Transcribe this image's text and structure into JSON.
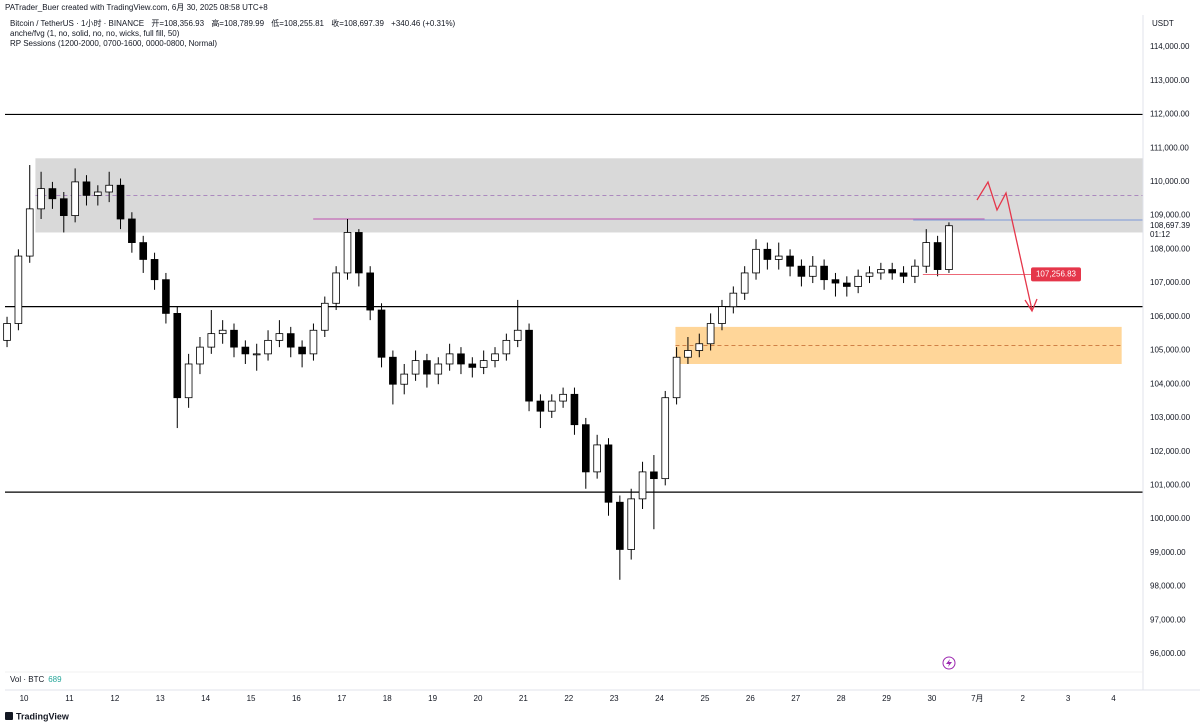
{
  "header": "PATrader_Buer created with TradingView.com, 6月 30, 2025 08:58 UTC+8",
  "legend": {
    "symbol": "Bitcoin / TetherUS · 1小时 · BINANCE",
    "open": "开=108,356.93",
    "high": "高=108,789.99",
    "low": "低=108,255.81",
    "close": "收=108,697.39",
    "change": "+340.46 (+0.31%)",
    "indicators": [
      "anche/fvg (1, no, solid, no, no, wicks, full fill, 50)",
      "RP Sessions (1200-2000, 0700-1600, 0000-0800, Normal)"
    ]
  },
  "currency": "USDT",
  "volume": {
    "label": "Vol · BTC",
    "value": "689"
  },
  "brand": "TradingView",
  "chart_data": {
    "type": "candlestick",
    "up_color": "#ffffff",
    "down_color": "#000000",
    "outline_color": "#000000",
    "xlim": [
      9.58,
      34.65
    ],
    "xticks": [
      10,
      11,
      12,
      13,
      14,
      15,
      16,
      17,
      18,
      19,
      20,
      21,
      22,
      23,
      24,
      25,
      26,
      27,
      28,
      29,
      30,
      {
        "value": 31,
        "label": "7月"
      },
      {
        "value": 32,
        "label": "2"
      },
      {
        "value": 33,
        "label": "3"
      },
      {
        "value": 34,
        "label": "4"
      }
    ],
    "ylim": [
      94932,
      114949
    ],
    "yticks": [
      {
        "value": 96000,
        "label": "96,000.00"
      },
      {
        "value": 97000,
        "label": "97,000.00"
      },
      {
        "value": 98000,
        "label": "98,000.00"
      },
      {
        "value": 99000,
        "label": "99,000.00"
      },
      {
        "value": 100000,
        "label": "100,000.00"
      },
      {
        "value": 101000,
        "label": "101,000.00"
      },
      {
        "value": 102000,
        "label": "102,000.00"
      },
      {
        "value": 103000,
        "label": "103,000.00"
      },
      {
        "value": 104000,
        "label": "104,000.00"
      },
      {
        "value": 105000,
        "label": "105,000.00"
      },
      {
        "value": 106000,
        "label": "106,000.00"
      },
      {
        "value": 107000,
        "label": "107,000.00"
      },
      {
        "value": 108000,
        "label": "108,000.00"
      },
      {
        "value": 109000,
        "label": "109,000.00"
      },
      {
        "value": 110000,
        "label": "110,000.00"
      },
      {
        "value": 111000,
        "label": "111,000.00"
      },
      {
        "value": 112000,
        "label": "112,000.00"
      },
      {
        "value": 113000,
        "label": "113,000.00"
      },
      {
        "value": 114000,
        "label": "114,000.00"
      }
    ],
    "x": [
      9.625,
      9.875,
      10.125,
      10.375,
      10.625,
      10.875,
      11.125,
      11.375,
      11.625,
      11.875,
      12.125,
      12.375,
      12.625,
      12.875,
      13.125,
      13.375,
      13.625,
      13.875,
      14.125,
      14.375,
      14.625,
      14.875,
      15.125,
      15.375,
      15.625,
      15.875,
      16.125,
      16.375,
      16.625,
      16.875,
      17.125,
      17.375,
      17.625,
      17.875,
      18.125,
      18.375,
      18.625,
      18.875,
      19.125,
      19.375,
      19.625,
      19.875,
      20.125,
      20.375,
      20.625,
      20.875,
      21.125,
      21.375,
      21.625,
      21.875,
      22.125,
      22.375,
      22.625,
      22.875,
      23.125,
      23.375,
      23.625,
      23.875,
      24.125,
      24.375,
      24.625,
      24.875,
      25.125,
      25.375,
      25.625,
      25.875,
      26.125,
      26.375,
      26.625,
      26.875,
      27.125,
      27.375,
      27.625,
      27.875,
      28.125,
      28.375,
      28.625,
      28.875,
      29.125,
      29.375,
      29.625,
      29.875,
      30.125,
      30.375
    ],
    "candles": [
      [
        105300,
        106000,
        105100,
        105800
      ],
      [
        105800,
        108000,
        105600,
        107800
      ],
      [
        107800,
        110500,
        107600,
        109200
      ],
      [
        109200,
        110300,
        108900,
        109800
      ],
      [
        109800,
        110000,
        109200,
        109500
      ],
      [
        109500,
        109700,
        108500,
        109000
      ],
      [
        109000,
        110400,
        108800,
        110000
      ],
      [
        110000,
        110200,
        109300,
        109600
      ],
      [
        109600,
        109900,
        109300,
        109700
      ],
      [
        109700,
        110300,
        109400,
        109900
      ],
      [
        109900,
        110100,
        108600,
        108900
      ],
      [
        108900,
        109100,
        107900,
        108200
      ],
      [
        108200,
        108400,
        107300,
        107700
      ],
      [
        107700,
        107900,
        106800,
        107100
      ],
      [
        107100,
        107300,
        105800,
        106100
      ],
      [
        106100,
        106300,
        102700,
        103600
      ],
      [
        103600,
        104900,
        103300,
        104600
      ],
      [
        104600,
        105400,
        104300,
        105100
      ],
      [
        105100,
        106200,
        104900,
        105500
      ],
      [
        105500,
        105900,
        105200,
        105600
      ],
      [
        105600,
        105800,
        104800,
        105100
      ],
      [
        105100,
        105300,
        104600,
        104900
      ],
      [
        104900,
        105200,
        104400,
        104900
      ],
      [
        104900,
        105600,
        104700,
        105300
      ],
      [
        105300,
        105900,
        105100,
        105500
      ],
      [
        105500,
        105700,
        104800,
        105100
      ],
      [
        105100,
        105300,
        104500,
        104900
      ],
      [
        104900,
        105800,
        104700,
        105600
      ],
      [
        105600,
        106600,
        105400,
        106400
      ],
      [
        106400,
        107500,
        106200,
        107300
      ],
      [
        107300,
        108900,
        107100,
        108500
      ],
      [
        108500,
        108600,
        106900,
        107300
      ],
      [
        107300,
        107500,
        105900,
        106200
      ],
      [
        106200,
        106400,
        104500,
        104800
      ],
      [
        104800,
        105000,
        103400,
        104000
      ],
      [
        104000,
        104600,
        103700,
        104300
      ],
      [
        104300,
        105000,
        104100,
        104700
      ],
      [
        104700,
        104900,
        103900,
        104300
      ],
      [
        104300,
        104800,
        104000,
        104600
      ],
      [
        104600,
        105200,
        104400,
        104900
      ],
      [
        104900,
        105100,
        104300,
        104600
      ],
      [
        104600,
        104800,
        104200,
        104500
      ],
      [
        104500,
        105000,
        104300,
        104700
      ],
      [
        104700,
        105100,
        104500,
        104900
      ],
      [
        104900,
        105500,
        104700,
        105300
      ],
      [
        105300,
        106500,
        105100,
        105600
      ],
      [
        105600,
        105800,
        103200,
        103500
      ],
      [
        103500,
        103700,
        102700,
        103200
      ],
      [
        103200,
        103700,
        103000,
        103500
      ],
      [
        103500,
        103900,
        103300,
        103700
      ],
      [
        103700,
        103900,
        102500,
        102800
      ],
      [
        102800,
        103000,
        100900,
        101400
      ],
      [
        101400,
        102500,
        101200,
        102200
      ],
      [
        102200,
        102400,
        100100,
        100500
      ],
      [
        100500,
        100700,
        98200,
        99100
      ],
      [
        99100,
        100900,
        98800,
        100600
      ],
      [
        100600,
        101700,
        100300,
        101400
      ],
      [
        101400,
        101900,
        99700,
        101200
      ],
      [
        101200,
        103800,
        101000,
        103600
      ],
      [
        103600,
        105100,
        103400,
        104800
      ],
      [
        104800,
        105400,
        104600,
        105000
      ],
      [
        105000,
        105500,
        104800,
        105200
      ],
      [
        105200,
        106100,
        105000,
        105800
      ],
      [
        105800,
        106500,
        105600,
        106300
      ],
      [
        106300,
        106900,
        106100,
        106700
      ],
      [
        106700,
        107500,
        106500,
        107300
      ],
      [
        107300,
        108300,
        107100,
        108000
      ],
      [
        108000,
        108200,
        107400,
        107700
      ],
      [
        107700,
        108200,
        107400,
        107800
      ],
      [
        107800,
        108000,
        107200,
        107500
      ],
      [
        107500,
        107700,
        106900,
        107200
      ],
      [
        107200,
        107800,
        107000,
        107500
      ],
      [
        107500,
        107700,
        106800,
        107100
      ],
      [
        107100,
        107300,
        106600,
        107000
      ],
      [
        107000,
        107200,
        106600,
        106900
      ],
      [
        106900,
        107400,
        106700,
        107200
      ],
      [
        107200,
        107500,
        107000,
        107300
      ],
      [
        107300,
        107600,
        107100,
        107400
      ],
      [
        107400,
        107600,
        107100,
        107300
      ],
      [
        107300,
        107500,
        107000,
        107200
      ],
      [
        107200,
        107700,
        107000,
        107500
      ],
      [
        107500,
        108600,
        107300,
        108200
      ],
      [
        108200,
        108400,
        107200,
        107400
      ],
      [
        107400,
        108800,
        107300,
        108700
      ]
    ],
    "zones": [
      {
        "from": 10.25,
        "to": 34.65,
        "low": 108500,
        "high": 110700,
        "mid": 109600,
        "color": "#d9d9d9",
        "mid_color": "#9c6fb6"
      },
      {
        "from": 24.35,
        "to": 34.18,
        "low": 104600,
        "high": 105700,
        "mid": 105150,
        "color": "#ffd699",
        "mid_color": "#c9743a"
      }
    ],
    "hlines": [
      112000,
      106300,
      100800
    ],
    "level_line": {
      "value": 108900,
      "from": 16.37,
      "to": 31.16,
      "color": "#c77dbe"
    },
    "current_price": {
      "value": 108697.39,
      "label": "108,697.39",
      "countdown": "01:12"
    },
    "alert": {
      "value": 107256.83,
      "label": "107,256.83",
      "from": 29.8,
      "color": "#e5364a"
    }
  }
}
